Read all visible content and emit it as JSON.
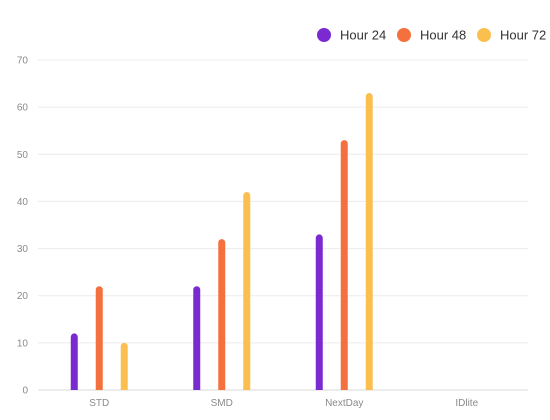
{
  "chart_data": {
    "type": "bar",
    "categories": [
      "STD",
      "SMD",
      "NextDay",
      "IDlite"
    ],
    "series": [
      {
        "name": "Hour 24",
        "color": "#7a2ad0",
        "values": [
          12,
          22,
          33,
          null
        ]
      },
      {
        "name": "Hour 48",
        "color": "#f5703f",
        "values": [
          22,
          32,
          53,
          null
        ]
      },
      {
        "name": "Hour 72",
        "color": "#fbbf50",
        "values": [
          10,
          42,
          63,
          null
        ]
      }
    ],
    "ylim": [
      0,
      70
    ],
    "yticks": [
      0,
      10,
      20,
      30,
      40,
      50,
      60,
      70
    ],
    "grid": true,
    "legend_position": "top-right",
    "title": "",
    "xlabel": "",
    "ylabel": ""
  }
}
